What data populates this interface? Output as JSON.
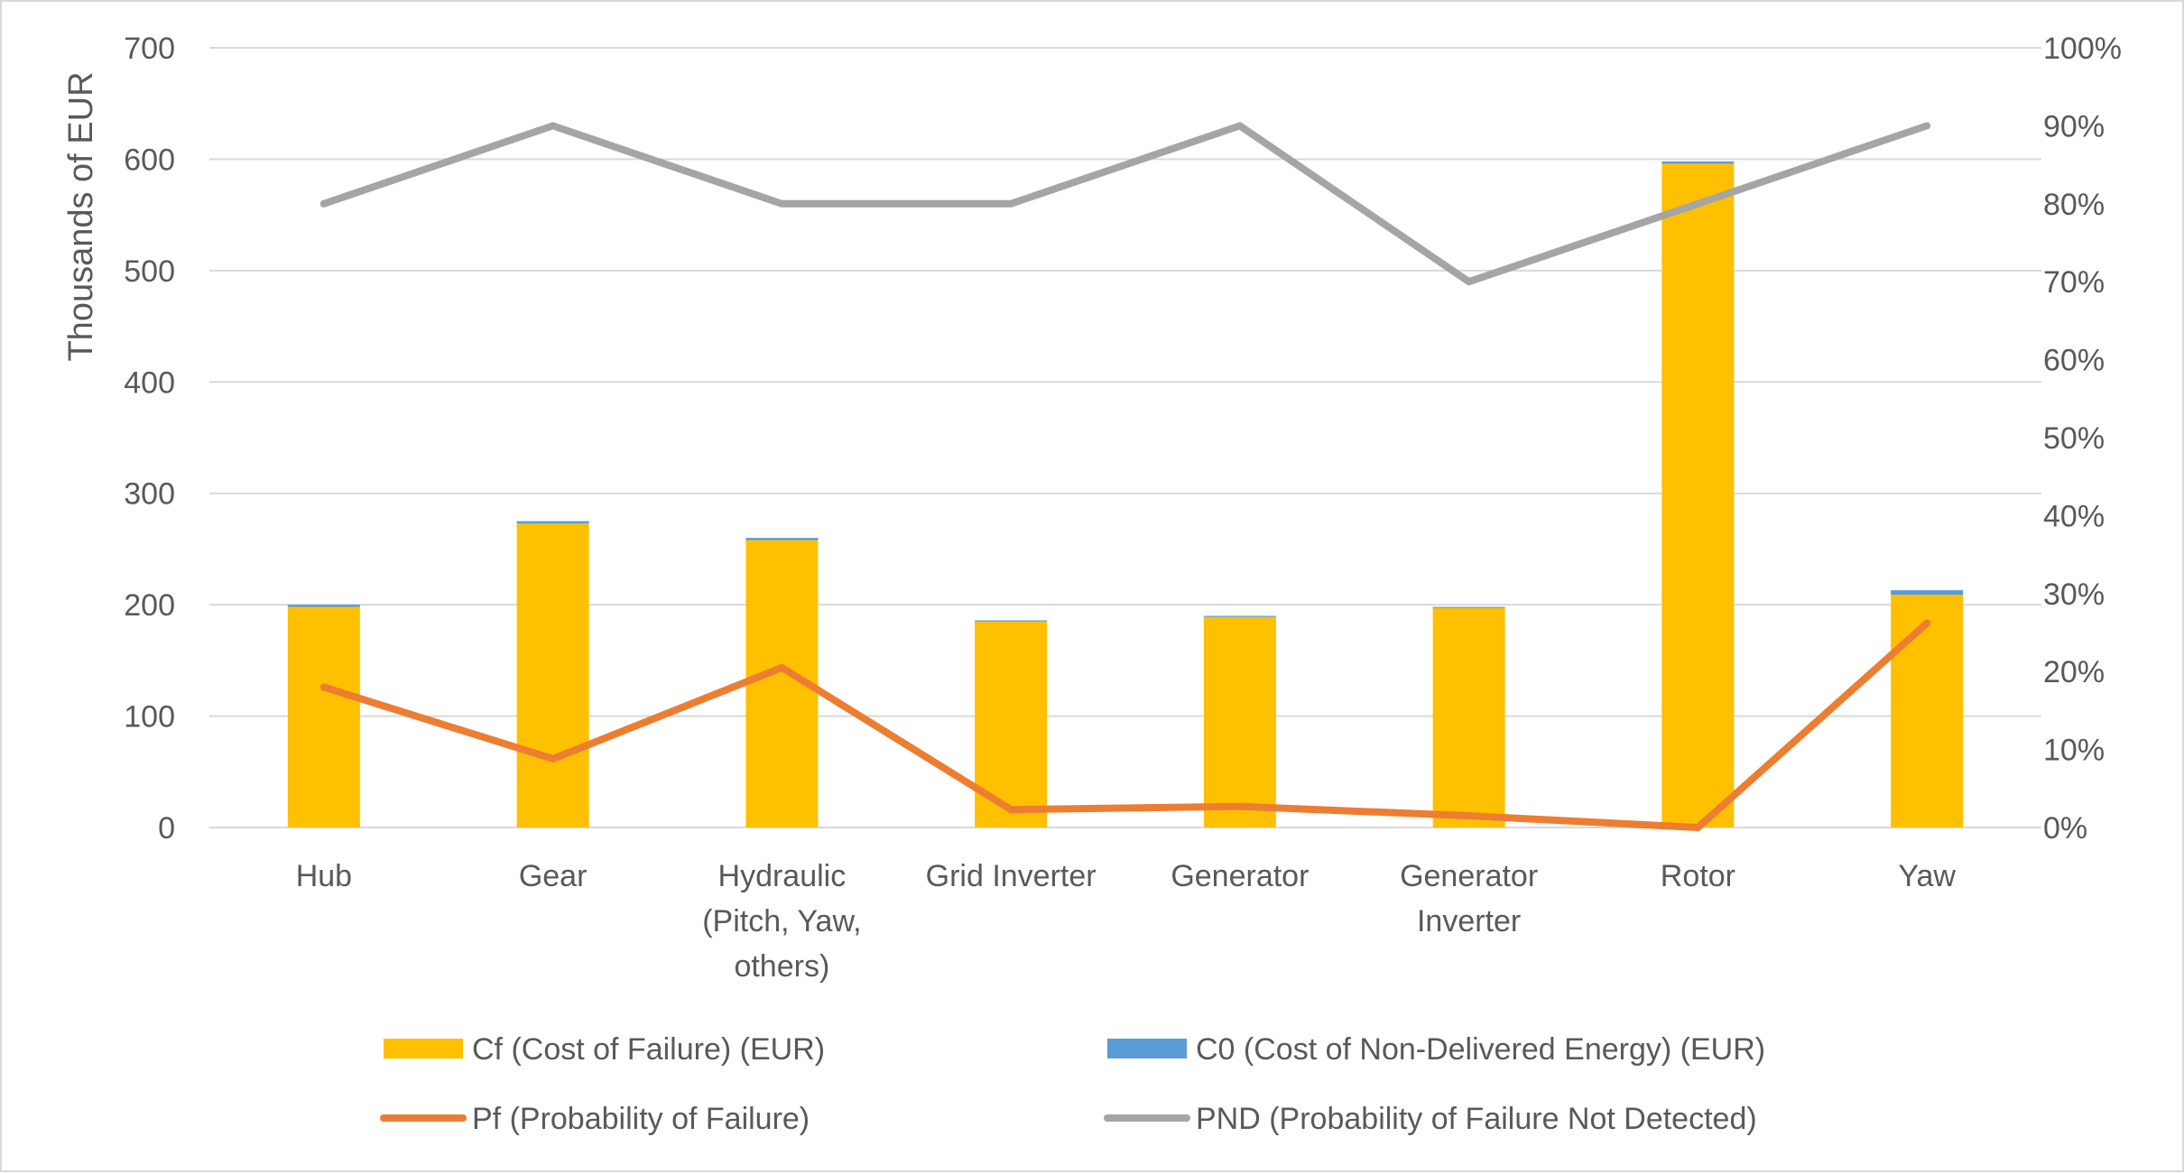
{
  "chart_data": {
    "type": "bar",
    "categories": [
      [
        "Hub"
      ],
      [
        "Gear"
      ],
      [
        "Hydraulic",
        "(Pitch, Yaw,",
        "others)"
      ],
      [
        "Grid Inverter"
      ],
      [
        "Generator"
      ],
      [
        "Generator",
        "Inverter"
      ],
      [
        "Rotor"
      ],
      [
        "Yaw"
      ]
    ],
    "ylabel": "Thousands of  EUR",
    "ylim": [
      0,
      700
    ],
    "yticks": [
      "0",
      "100",
      "200",
      "300",
      "400",
      "500",
      "600",
      "700"
    ],
    "y2lim": [
      0,
      1
    ],
    "y2ticks": [
      "0%",
      "10%",
      "20%",
      "30%",
      "40%",
      "50%",
      "60%",
      "70%",
      "80%",
      "90%",
      "100%"
    ],
    "grid": true,
    "legend_position": "bottom",
    "series": [
      {
        "name": "Cf (Cost of Failure) (EUR)",
        "type": "bar",
        "axis": "left",
        "color": "#FFC000",
        "values": [
          198,
          273,
          258,
          185,
          189,
          197,
          596,
          209
        ]
      },
      {
        "name": "C0 (Cost of Non-Delivered Energy) (EUR)",
        "type": "bar-stacked",
        "axis": "left",
        "color": "#5B9BD5",
        "values": [
          2,
          2,
          2,
          1,
          1,
          1,
          2,
          4
        ]
      },
      {
        "name": "Pf (Probability of Failure)",
        "type": "line",
        "axis": "right",
        "color": "#ED7D31",
        "values": [
          0.18,
          0.088,
          0.205,
          0.023,
          0.027,
          0.015,
          0.0,
          0.262
        ]
      },
      {
        "name": "PND (Probability of Failure Not Detected)",
        "type": "line",
        "axis": "right",
        "color": "#A5A5A5",
        "values": [
          0.8,
          0.9,
          0.8,
          0.8,
          0.9,
          0.7,
          0.8,
          0.9
        ]
      }
    ]
  }
}
